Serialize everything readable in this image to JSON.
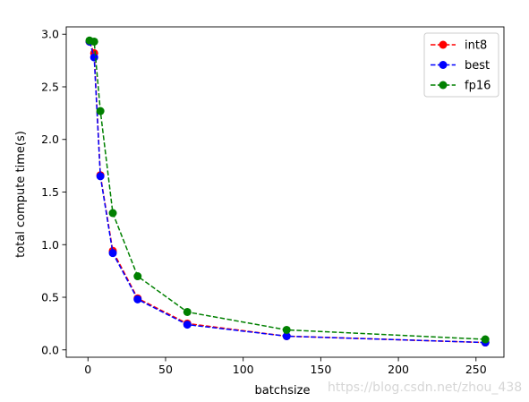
{
  "chart_data": {
    "type": "line",
    "title": "",
    "xlabel": "batchsize",
    "ylabel": "total compute time(s)",
    "xlim": [
      -14,
      268
    ],
    "ylim": [
      -0.07,
      3.07
    ],
    "xticks": [
      0,
      50,
      100,
      150,
      200,
      250
    ],
    "xtick_labels": [
      "0",
      "50",
      "100",
      "150",
      "200",
      "250"
    ],
    "yticks": [
      0.0,
      0.5,
      1.0,
      1.5,
      2.0,
      2.5,
      3.0
    ],
    "ytick_labels": [
      "0.0",
      "0.5",
      "1.0",
      "1.5",
      "2.0",
      "2.5",
      "3.0"
    ],
    "grid": false,
    "legend_position": "top-right",
    "x": [
      1,
      4,
      8,
      16,
      32,
      64,
      128,
      256
    ],
    "series": [
      {
        "name": "int8",
        "color": "#ff0000",
        "linestyle": "dashed",
        "marker": "circle",
        "values": [
          2.93,
          2.82,
          1.66,
          0.94,
          0.49,
          0.25,
          0.13,
          0.07
        ]
      },
      {
        "name": "best",
        "color": "#0000ff",
        "linestyle": "dashed",
        "marker": "circle",
        "values": [
          2.93,
          2.78,
          1.65,
          0.92,
          0.48,
          0.24,
          0.13,
          0.07
        ]
      },
      {
        "name": "fp16",
        "color": "#008000",
        "linestyle": "dashed",
        "marker": "circle",
        "values": [
          2.94,
          2.93,
          2.27,
          1.3,
          0.7,
          0.36,
          0.19,
          0.1
        ]
      }
    ]
  },
  "watermark": "https://blog.csdn.net/zhou_438"
}
